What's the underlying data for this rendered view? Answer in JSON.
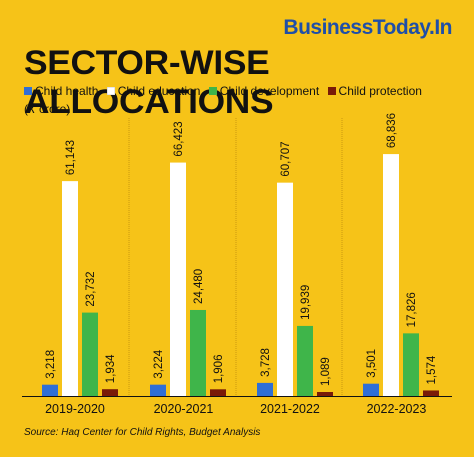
{
  "brand": "BusinessToday.In",
  "unit_label": "(₹ crore)",
  "source": "Source: Haq Center for Child Rights, Budget Analysis",
  "colors": {
    "background": "#f6c318",
    "brand": "#1f4fa8"
  },
  "chart_data": {
    "type": "bar",
    "title": "SECTOR-WISE ALLOCATIONS",
    "ylabel": "(₹ crore)",
    "xlabel": "",
    "ylim": [
      0,
      70000
    ],
    "grid": false,
    "legend_position": "top-left",
    "categories": [
      "2019-2020",
      "2020-2021",
      "2021-2022",
      "2022-2023"
    ],
    "series": [
      {
        "name": "Child health",
        "color": "#2f6fd6",
        "values": [
          3218,
          3224,
          3728,
          3501
        ]
      },
      {
        "name": "Child education",
        "color": "#ffffff",
        "values": [
          61143,
          66423,
          60707,
          68836
        ]
      },
      {
        "name": "Child development",
        "color": "#3fb54a",
        "values": [
          23732,
          24480,
          19939,
          17826
        ]
      },
      {
        "name": "Child protection",
        "color": "#7a1a08",
        "values": [
          1934,
          1906,
          1089,
          1574
        ]
      }
    ],
    "data_labels": [
      [
        "3,218",
        "61,143",
        "23,732",
        "1,934"
      ],
      [
        "3,224",
        "66,423",
        "24,480",
        "1,906"
      ],
      [
        "3,728",
        "60,707",
        "19,939",
        "1,089"
      ],
      [
        "3,501",
        "68,836",
        "17,826",
        "1,574"
      ]
    ]
  }
}
